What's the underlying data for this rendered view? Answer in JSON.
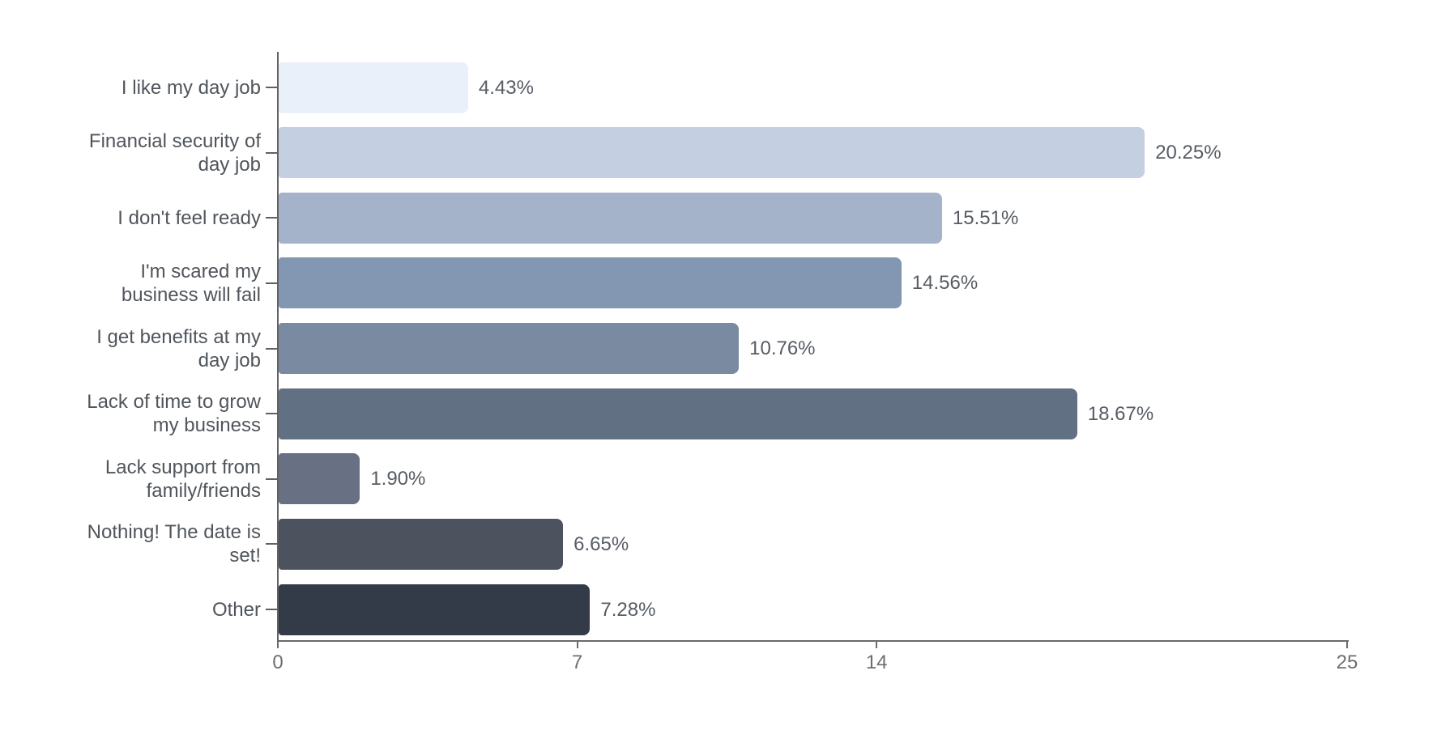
{
  "page": {
    "background": "#ffffff",
    "title": ""
  },
  "chart_data": {
    "type": "bar",
    "orientation": "horizontal",
    "title": "",
    "xlabel": "",
    "ylabel": "",
    "categories": [
      "I like my day job",
      "Financial security of day job",
      "I don't feel ready",
      "I'm scared my business will fail",
      "I get benefits at my day job",
      "Lack of time to grow my business",
      "Lack support from family/friends",
      "Nothing! The date is set!",
      "Other"
    ],
    "category_lines": [
      [
        "I like my day job"
      ],
      [
        "Financial security of",
        "day job"
      ],
      [
        "I don't feel ready"
      ],
      [
        "I'm scared my",
        "business will fail"
      ],
      [
        "I get benefits at my",
        "day job"
      ],
      [
        "Lack of time to grow",
        "my business"
      ],
      [
        "Lack support from",
        "family/friends"
      ],
      [
        "Nothing! The date is",
        "set!"
      ],
      [
        "Other"
      ]
    ],
    "values": [
      4.43,
      20.25,
      15.51,
      14.56,
      10.76,
      18.67,
      1.9,
      6.65,
      7.28
    ],
    "value_labels": [
      "4.43%",
      "20.25%",
      "15.51%",
      "14.56%",
      "10.76%",
      "18.67%",
      "1.90%",
      "6.65%",
      "7.28%"
    ],
    "bar_colors": [
      "#e9f0fa",
      "#c4cfe1",
      "#a4b3ca",
      "#8397b3",
      "#7a8aa0",
      "#627084",
      "#687183",
      "#4c535f",
      "#333b48"
    ],
    "xlim": [
      0,
      25
    ],
    "x_ticks": [
      0,
      7,
      14,
      25
    ],
    "x_tick_labels": [
      "0",
      "7",
      "14",
      "25"
    ],
    "grid": false,
    "legend": "none",
    "axis_color": "#616161",
    "category_label_color": "#50555c",
    "value_label_color": "#575c64",
    "tick_label_color": "#6e6e6e"
  },
  "layout_hints": {
    "note": "horizontal bar chart, no title, no legend, white background"
  }
}
